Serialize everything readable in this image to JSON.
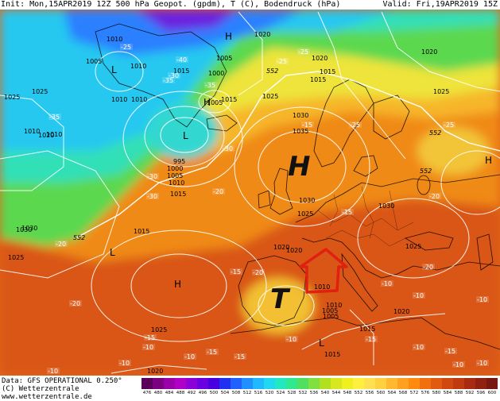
{
  "header": {
    "left": "Init: Mon,15APR2019 12Z 500 hPa Geopot. (gpdm), T (C), Bodendruck (hPa)",
    "right": "Valid: Fri,19APR2019 15Z"
  },
  "footer": {
    "data_line": "Data: GFS OPERATIONAL 0.250°",
    "copyright": "(C) Wetterzentrale",
    "url": "www.wetterzentrale.de"
  },
  "legend": {
    "values": [
      "476",
      "480",
      "484",
      "488",
      "492",
      "496",
      "500",
      "504",
      "508",
      "512",
      "516",
      "520",
      "524",
      "528",
      "532",
      "536",
      "540",
      "544",
      "548",
      "552",
      "556",
      "560",
      "564",
      "568",
      "572",
      "576",
      "580",
      "584",
      "588",
      "592",
      "596",
      "600"
    ],
    "colors": [
      "#5a005a",
      "#7a0080",
      "#9a00a8",
      "#b000c8",
      "#8c00d8",
      "#6a00e0",
      "#4800e0",
      "#2030f0",
      "#2060ff",
      "#2090ff",
      "#20b8ff",
      "#20d8f0",
      "#20e8c0",
      "#30e890",
      "#50e060",
      "#80e040",
      "#b0e020",
      "#d8e820",
      "#f0f020",
      "#fff040",
      "#ffe050",
      "#ffd040",
      "#ffb830",
      "#ffa020",
      "#ff8a10",
      "#f07010",
      "#e05a10",
      "#d04810",
      "#c03a10",
      "#a82a10",
      "#902010",
      "#781810"
    ]
  },
  "pressure_centers": [
    {
      "symbol": "H",
      "kind": "main"
    },
    {
      "symbol": "T",
      "kind": "main"
    },
    {
      "symbol": "H",
      "kind": "small"
    },
    {
      "symbol": "H",
      "kind": "small"
    },
    {
      "symbol": "H",
      "kind": "small"
    },
    {
      "symbol": "H",
      "kind": "small"
    },
    {
      "symbol": "L",
      "kind": "small"
    },
    {
      "symbol": "L",
      "kind": "small"
    },
    {
      "symbol": "L",
      "kind": "small"
    },
    {
      "symbol": "L",
      "kind": "small"
    }
  ],
  "isobar_labels": [
    "1010",
    "1005",
    "1010",
    "1015",
    "1000",
    "1005",
    "1010",
    "1010",
    "1015",
    "1020",
    "1025",
    "1020",
    "1025",
    "995",
    "1000",
    "1005",
    "1010",
    "1015",
    "1030",
    "1035",
    "1030",
    "1025",
    "1030",
    "1025",
    "1020",
    "1015",
    "1005",
    "1010",
    "1015",
    "1025",
    "1030",
    "1010",
    "1015",
    "1030",
    "1025",
    "1020",
    "1020",
    "1015",
    "1020",
    "1010",
    "1005",
    "1020",
    "1025",
    "1020",
    "1010",
    "1005",
    "1015",
    "1025"
  ],
  "temp_labels": [
    "-40",
    "-35",
    "-30",
    "-25",
    "-35",
    "-30",
    "-35",
    "-30",
    "-30",
    "-25",
    "-25",
    "-20",
    "-20",
    "-25",
    "-25",
    "-20",
    "-20",
    "-15",
    "-15",
    "-20",
    "-15",
    "-20",
    "-15",
    "-15",
    "-10",
    "-10",
    "-10",
    "-10",
    "-15",
    "-10",
    "-10",
    "-10",
    "-10",
    "-15",
    "-10",
    "-10",
    "-10",
    "-15"
  ],
  "contour_labels": [
    "552",
    "552",
    "552",
    "552"
  ]
}
